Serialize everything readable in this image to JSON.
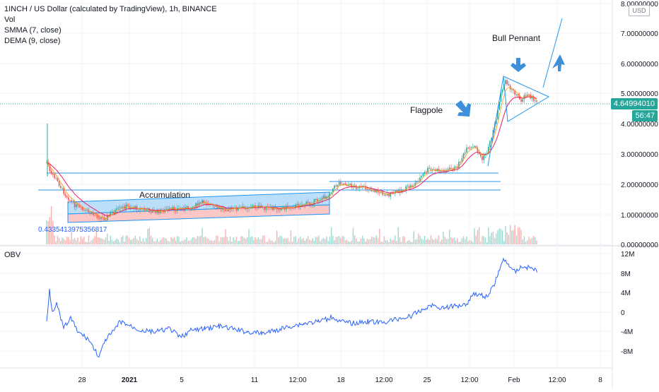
{
  "legend": {
    "symbol_line": "1INCH / US Dollar (calculated by TradingView), 1h, BINANCE",
    "vol": "Vol",
    "smma": "SMMA (7, close)",
    "dema": "DEMA (9, close)"
  },
  "obv_label": "OBV",
  "currency_button": "USD",
  "price_axis_labels": [
    "8.00000000",
    "7.00000000",
    "6.00000000",
    "5.00000000",
    "4.00000000",
    "3.00000000",
    "2.00000000",
    "1.00000000",
    "0.00000000"
  ],
  "obv_axis_labels": [
    "12M",
    "8M",
    "4M",
    "0",
    "-4M",
    "-8M"
  ],
  "time_axis_labels": [
    "28",
    "2021",
    "5",
    "11",
    "12:00",
    "18",
    "12:00",
    "25",
    "12:00",
    "Feb",
    "12:00",
    "8"
  ],
  "current_price": "4.64994010",
  "countdown": "56:47",
  "annotations": {
    "bull_pennant": "Bull Pennant",
    "flagpole": "Flagpole",
    "accumulation": "Accumulation",
    "low_value": "0.4335413975356817"
  },
  "colors": {
    "up": "#26a69a",
    "down": "#ef5350",
    "trendline": "#2196f3",
    "obv_line": "#2962ff",
    "accum_blue_fill": "#90caf9",
    "accum_red_fill": "#f8a5a5"
  }
}
